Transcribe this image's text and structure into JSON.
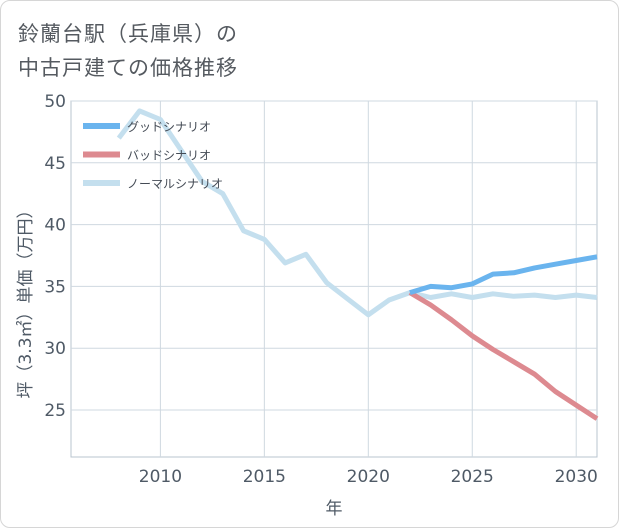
{
  "title": {
    "line1": "鈴蘭台駅（兵庫県）の",
    "line2": "中古戸建ての価格推移"
  },
  "chart_data": {
    "type": "line",
    "title": "鈴蘭台駅（兵庫県）の中古戸建ての価格推移",
    "xlabel": "年",
    "ylabel": "坪（3.3㎡）単価（万円）",
    "xlim": [
      2005.7,
      2031
    ],
    "ylim": [
      21.2,
      50
    ],
    "xticks": [
      2010,
      2015,
      2020,
      2025,
      2030
    ],
    "yticks": [
      25,
      30,
      35,
      40,
      45,
      50
    ],
    "grid": true,
    "legend_position": "top-left",
    "series": [
      {
        "name": "グッドシナリオ",
        "color": "#6ab4ee",
        "x": [
          2022,
          2023,
          2024,
          2025,
          2026,
          2027,
          2028,
          2029,
          2030,
          2031
        ],
        "y": [
          34.5,
          35.0,
          34.9,
          35.2,
          36.0,
          36.1,
          36.5,
          36.8,
          37.1,
          37.4
        ]
      },
      {
        "name": "バッドシナリオ",
        "color": "#dd8a90",
        "x": [
          2022,
          2023,
          2024,
          2025,
          2026,
          2027,
          2028,
          2029,
          2030,
          2031
        ],
        "y": [
          34.5,
          33.5,
          32.3,
          31.0,
          29.9,
          28.9,
          27.9,
          26.5,
          25.4,
          24.3
        ]
      },
      {
        "name": "ノーマルシナリオ",
        "color": "#c4dfee",
        "x": [
          2008,
          2009,
          2010,
          2011,
          2012,
          2013,
          2014,
          2015,
          2016,
          2017,
          2018,
          2019,
          2020,
          2021,
          2022,
          2023,
          2024,
          2025,
          2026,
          2027,
          2028,
          2029,
          2030,
          2031
        ],
        "y": [
          47.0,
          49.2,
          48.5,
          46.0,
          43.5,
          42.5,
          39.5,
          38.8,
          36.9,
          37.6,
          35.3,
          34.0,
          32.7,
          33.9,
          34.5,
          34.1,
          34.4,
          34.1,
          34.4,
          34.2,
          34.3,
          34.1,
          34.3,
          34.1
        ]
      }
    ]
  }
}
